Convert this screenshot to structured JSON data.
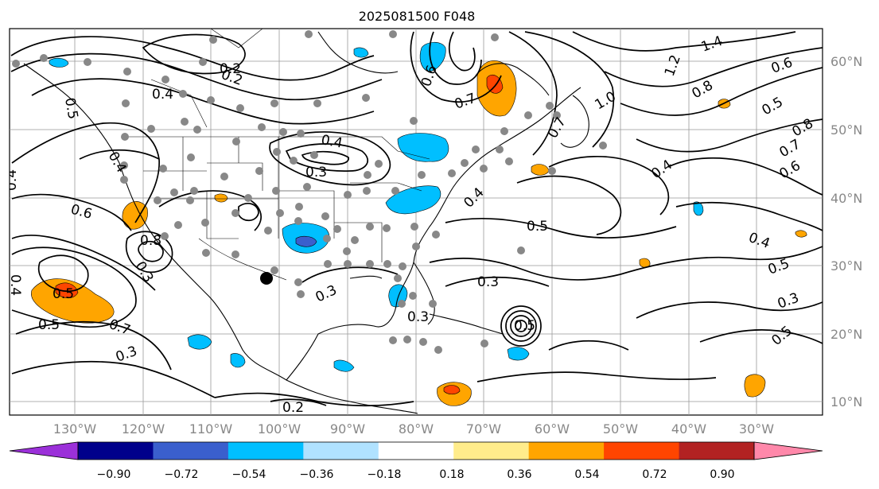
{
  "title": "2025081500 F048",
  "lon_labels": [
    "130°W",
    "120°W",
    "110°W",
    "100°W",
    "90°W",
    "80°W",
    "70°W",
    "60°W",
    "50°W",
    "40°W",
    "30°W"
  ],
  "lat_labels": [
    "60°N",
    "50°N",
    "40°N",
    "30°N",
    "20°N",
    "10°N"
  ],
  "colorbar": {
    "ticks": [
      "−0.90",
      "−0.72",
      "−0.54",
      "−0.36",
      "−0.18",
      "0.18",
      "0.36",
      "0.54",
      "0.72",
      "0.90"
    ],
    "colors": [
      "#9b30d9",
      "#00008b",
      "#3a5fcd",
      "#00bfff",
      "#b0e2ff",
      "#ffffff",
      "#ffec8b",
      "#ffa500",
      "#ff4500",
      "#b22222",
      "#ff88aa"
    ]
  },
  "contour_labels": [
    {
      "text": "0.2"
    },
    {
      "text": "0.4"
    },
    {
      "text": "0.6"
    },
    {
      "text": "0.8"
    },
    {
      "text": "0.5"
    },
    {
      "text": "0.3"
    },
    {
      "text": "0.4"
    },
    {
      "text": "0.3"
    },
    {
      "text": "0.7"
    },
    {
      "text": "0.6"
    },
    {
      "text": "0.5"
    },
    {
      "text": "0.7"
    },
    {
      "text": "0.4"
    },
    {
      "text": "0.3"
    },
    {
      "text": "0.3"
    },
    {
      "text": "0.3"
    },
    {
      "text": "0.2"
    },
    {
      "text": "0.8"
    },
    {
      "text": "0.4"
    },
    {
      "text": "1.0"
    },
    {
      "text": "1.4"
    },
    {
      "text": "1.2"
    },
    {
      "text": "0.6"
    },
    {
      "text": "0.5"
    },
    {
      "text": "0.8"
    },
    {
      "text": "0.7"
    },
    {
      "text": "0.6"
    },
    {
      "text": "0.4"
    },
    {
      "text": "0.5"
    },
    {
      "text": "0.4"
    },
    {
      "text": "0.5"
    },
    {
      "text": "0.3"
    },
    {
      "text": "0.5"
    },
    {
      "text": "0.4"
    },
    {
      "text": "0.5"
    },
    {
      "text": "0.3"
    },
    {
      "text": "0.2"
    },
    {
      "text": "0.4"
    },
    {
      "text": "0.7"
    },
    {
      "text": "0.5"
    }
  ]
}
